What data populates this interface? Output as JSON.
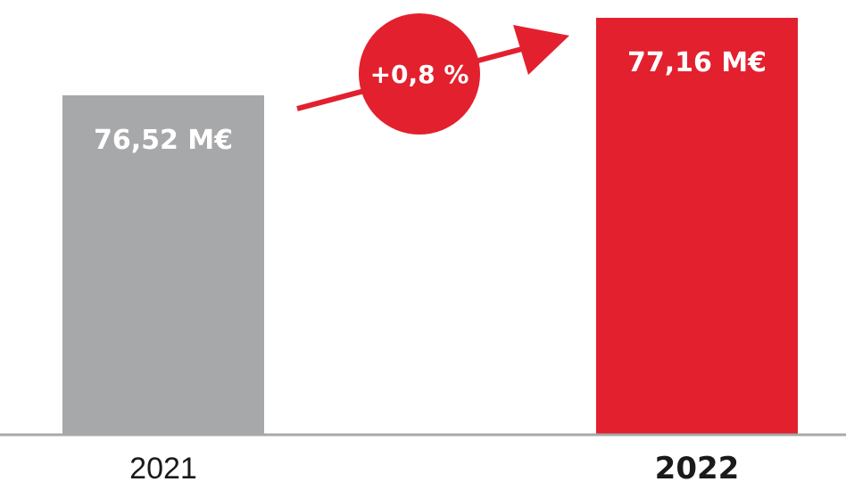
{
  "chart_data": {
    "type": "bar",
    "categories": [
      "2021",
      "2022"
    ],
    "values": [
      76.52,
      77.16
    ],
    "data_labels": [
      "76,52 M€",
      "77,16 M€"
    ],
    "bar_colors": [
      "#a7a8aa",
      "#e3202e"
    ],
    "highlighted_category": "2022",
    "change_annotation": "+0,8 %",
    "annotation_color": "#e3202e",
    "axis_color": "#a7a8aa",
    "grid": false,
    "title": "",
    "xlabel": "",
    "ylabel": ""
  }
}
